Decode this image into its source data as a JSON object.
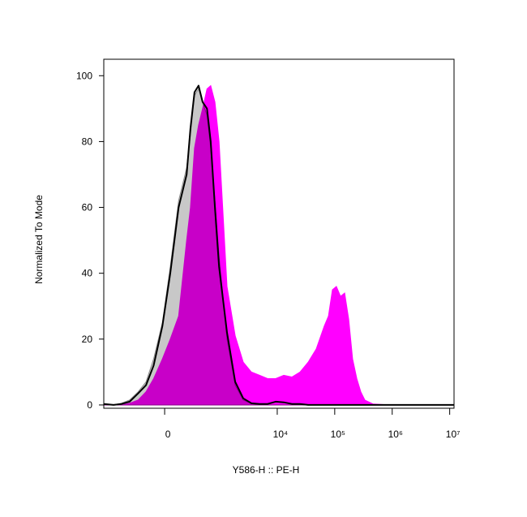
{
  "chart_data": {
    "type": "area",
    "xlabel": "Y586-H :: PE-H",
    "ylabel": "Normalized To Mode",
    "xscale": "arcsinh",
    "linear_width": 220,
    "xlim": [
      -1250,
      11900000
    ],
    "ylim": [
      -1,
      105
    ],
    "xticks": [
      0,
      {
        "value": 10000,
        "label": "10⁴"
      },
      {
        "value": 100000,
        "label": "10⁵"
      },
      {
        "value": 1000000,
        "label": "10⁶"
      },
      {
        "value": 10000000,
        "label": "10⁷"
      }
    ],
    "yticks": [
      0,
      20,
      40,
      60,
      80,
      100
    ],
    "x": [
      -1250,
      -840,
      -600,
      -420,
      -280,
      -180,
      -100,
      -20,
      50,
      130,
      220,
      270,
      330,
      400,
      480,
      580,
      680,
      810,
      960,
      1330,
      1850,
      2560,
      3550,
      4910,
      6800,
      9400,
      13000,
      18000,
      24900,
      34500,
      47700,
      66000,
      77700,
      91300,
      107000,
      126000,
      149000,
      175000,
      205000,
      242000,
      284000,
      334000,
      462000,
      886000,
      1700000,
      3250000,
      6210000,
      11900000
    ],
    "series": [
      {
        "color": "#c8c8c8",
        "stroke": "#8a8a8a",
        "fill": true,
        "values": [
          0,
          0,
          0.5,
          1.5,
          4,
          7,
          14,
          25,
          42,
          62,
          72,
          82,
          94,
          96,
          92,
          88,
          78,
          62,
          45,
          20,
          6,
          1.5,
          0.5,
          0,
          0,
          0,
          0,
          0,
          0,
          0,
          0,
          0,
          0,
          0,
          0,
          0,
          0,
          0,
          0,
          0,
          0,
          0,
          0,
          0,
          0,
          0,
          0,
          0
        ]
      },
      {
        "color": "#ff00ff",
        "stroke": "#ff00ff",
        "fill": true,
        "values": [
          0,
          0,
          0,
          0.5,
          1.5,
          4,
          8,
          14,
          20,
          27,
          50,
          60,
          78,
          85,
          90,
          96,
          97,
          92,
          80,
          36,
          21,
          13,
          10,
          9,
          8,
          8,
          9,
          8.5,
          10,
          13,
          17,
          24,
          27,
          35,
          36,
          33,
          34,
          26,
          14,
          8,
          4,
          1.5,
          0.3,
          0,
          0,
          0,
          0,
          0
        ]
      },
      {
        "color": "#000000",
        "stroke": "#000000",
        "fill": false,
        "values": [
          0.3,
          0,
          0.3,
          1,
          3.5,
          6,
          12,
          24,
          40,
          60,
          70,
          84,
          95,
          97,
          92,
          90,
          80,
          60,
          42,
          22,
          7,
          2,
          0.5,
          0.3,
          0.3,
          1,
          0.8,
          0.3,
          0.3,
          0,
          0,
          0,
          0,
          0,
          0,
          0,
          0,
          0,
          0,
          0,
          0,
          0,
          0,
          0,
          0,
          0,
          0,
          0
        ]
      }
    ]
  }
}
